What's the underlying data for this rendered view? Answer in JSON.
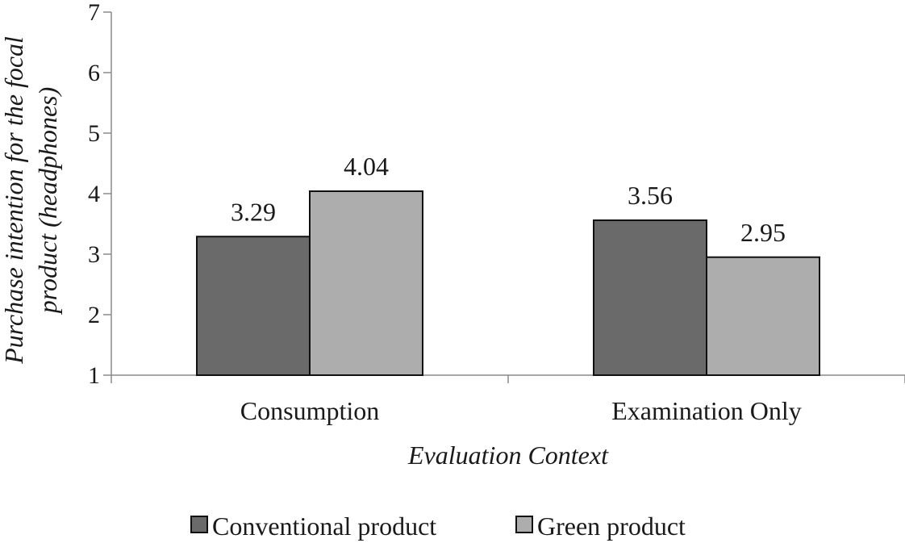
{
  "chart_data": {
    "type": "bar",
    "title": "",
    "xlabel": "Evaluation Context",
    "ylabel": "Purchase intention for the focal product (headphones)",
    "ylabel_lines": [
      "Purchase intention for the focal",
      "product (headphones)"
    ],
    "ylim": [
      1,
      7
    ],
    "yticks": [
      "1",
      "2",
      "3",
      "4",
      "5",
      "6",
      "7"
    ],
    "grid": false,
    "legend_position": "bottom",
    "categories": [
      "Consumption",
      "Examination Only"
    ],
    "series": [
      {
        "name": "Conventional product",
        "color": "#6a6a6a",
        "values": [
          3.29,
          3.56
        ],
        "labels": [
          "3.29",
          "3.56"
        ]
      },
      {
        "name": "Green product",
        "color": "#adadad",
        "values": [
          4.04,
          2.95
        ],
        "labels": [
          "4.04",
          "2.95"
        ]
      }
    ]
  }
}
